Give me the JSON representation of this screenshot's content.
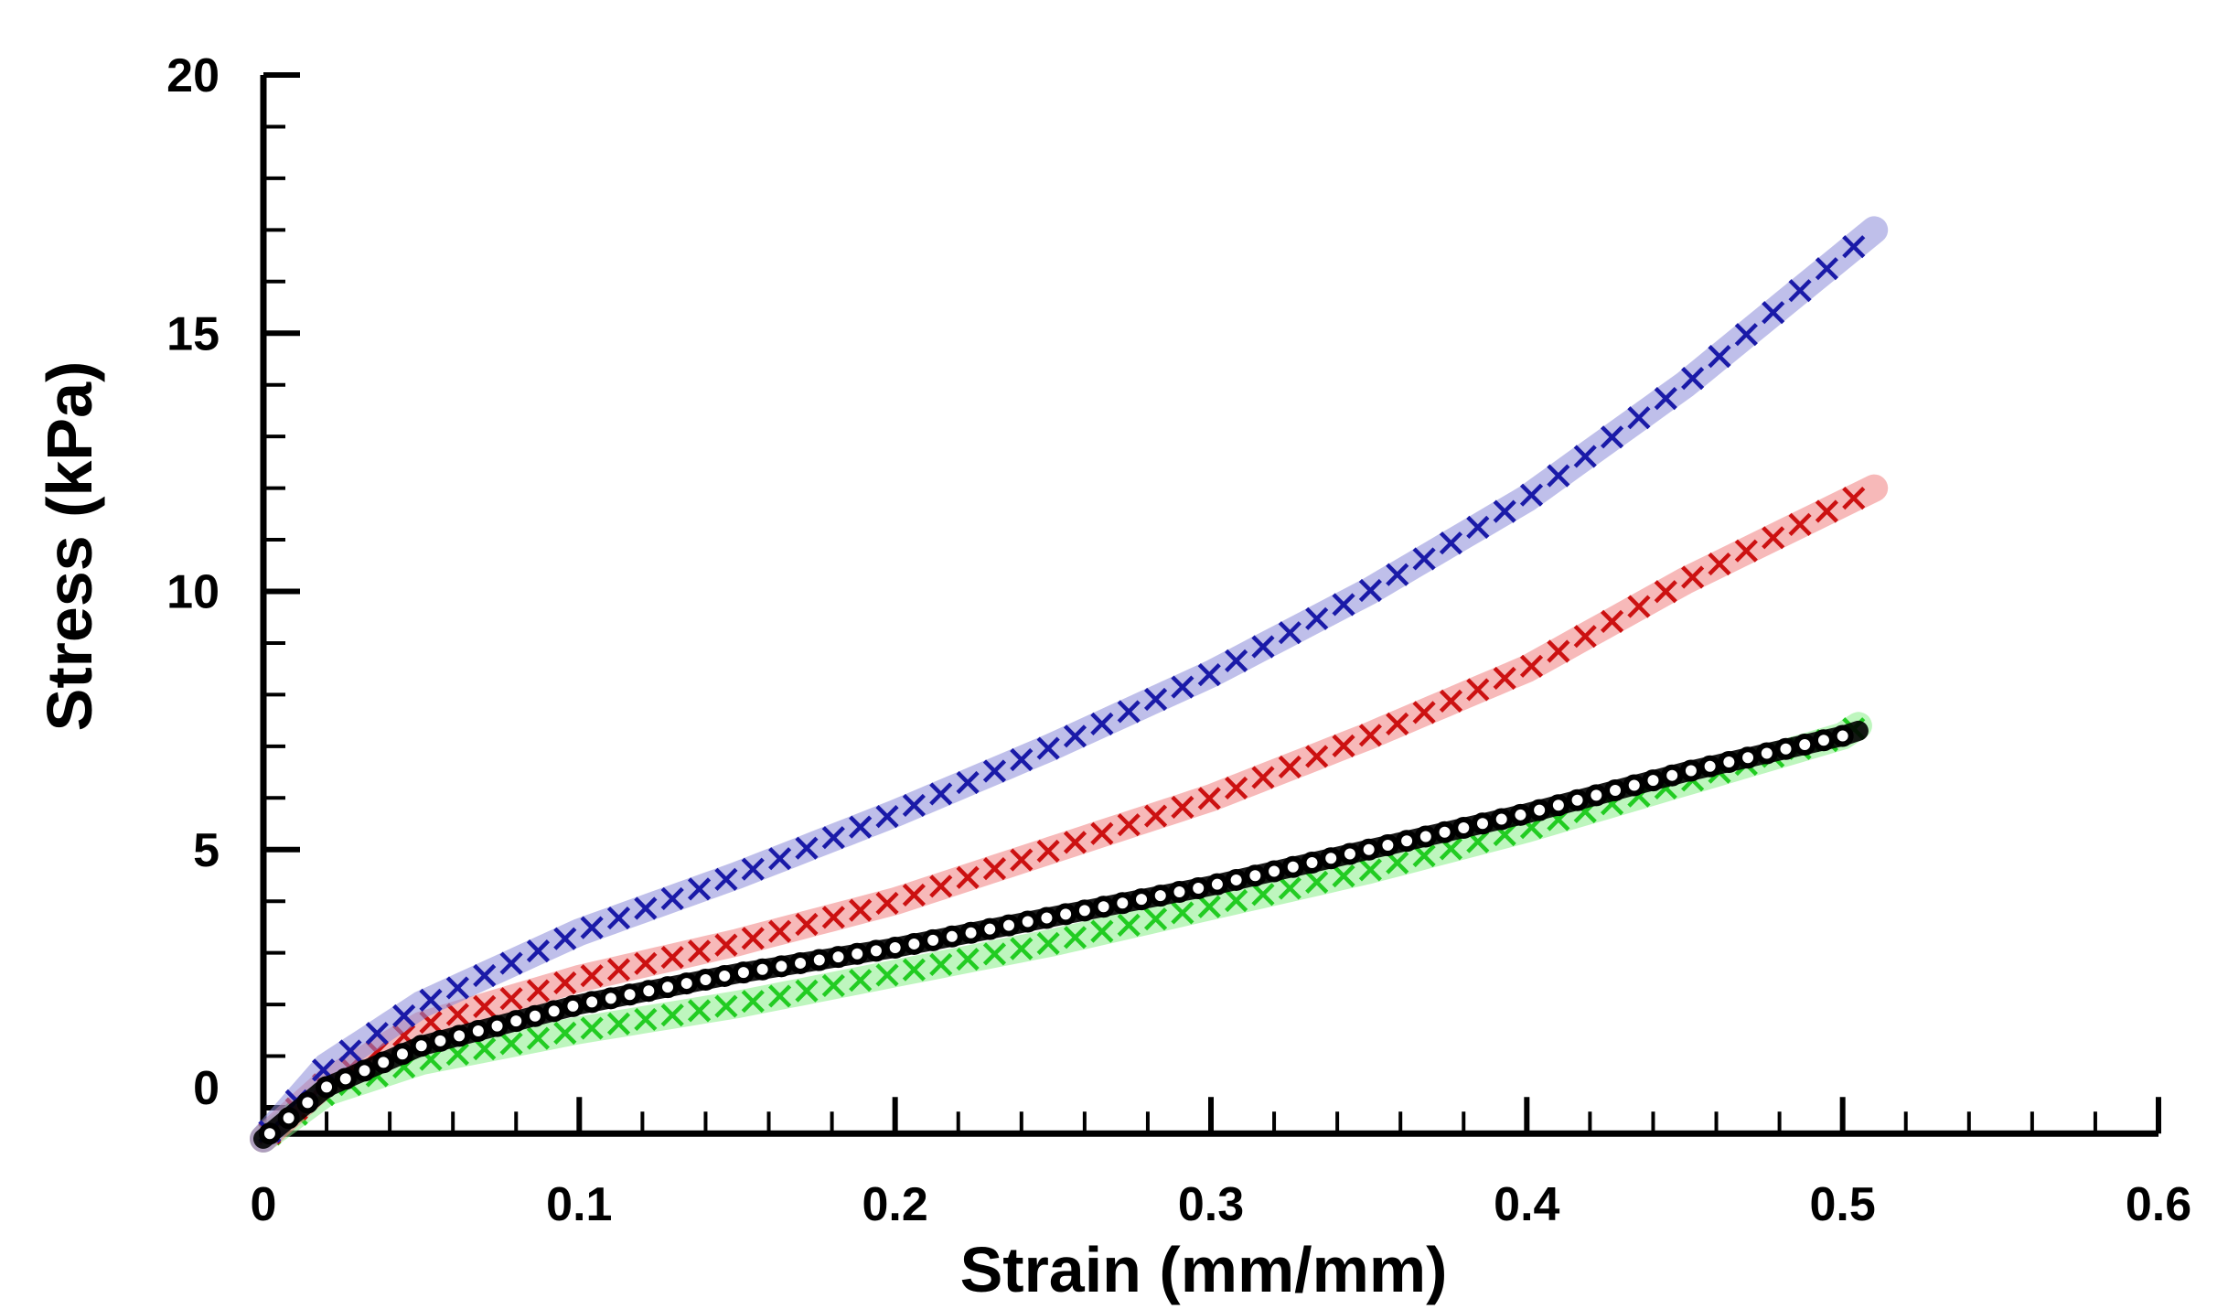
{
  "chart_data": {
    "type": "scatter",
    "title": "",
    "xlabel": "Strain (mm/mm)",
    "ylabel": "Stress (kPa)",
    "xlim": [
      0,
      0.6
    ],
    "ylim": [
      -0.5,
      20
    ],
    "xticks": [
      0,
      0.1,
      0.2,
      0.3,
      0.4,
      0.5,
      0.6
    ],
    "xtick_labels": [
      "0",
      "0.1",
      "0.2",
      "0.3",
      "0.4",
      "0.5",
      "0.6"
    ],
    "yticks": [
      0,
      5,
      10,
      15,
      20
    ],
    "ytick_labels": [
      "0",
      "5",
      "10",
      "15",
      "20"
    ],
    "grid": false,
    "series": [
      {
        "name": "blue",
        "color": "#1a1aa8",
        "band_color": "#8a8ad8",
        "marker": "x",
        "x": [
          0,
          0.02,
          0.05,
          0.1,
          0.15,
          0.2,
          0.25,
          0.3,
          0.35,
          0.4,
          0.45,
          0.5,
          0.51
        ],
        "y": [
          -0.6,
          0.8,
          2.0,
          3.4,
          4.5,
          5.7,
          7.0,
          8.4,
          10.0,
          11.8,
          14.0,
          16.5,
          17.0
        ]
      },
      {
        "name": "red",
        "color": "#cc1111",
        "band_color": "#f08080",
        "marker": "x",
        "x": [
          0,
          0.02,
          0.05,
          0.1,
          0.15,
          0.2,
          0.25,
          0.3,
          0.35,
          0.4,
          0.45,
          0.5,
          0.51
        ],
        "y": [
          -0.6,
          0.5,
          1.6,
          2.5,
          3.2,
          4.0,
          5.0,
          6.0,
          7.2,
          8.5,
          10.2,
          11.7,
          12.0
        ]
      },
      {
        "name": "black",
        "color": "#000000",
        "band_color": "#000000",
        "marker": "o",
        "x": [
          0,
          0.02,
          0.05,
          0.1,
          0.15,
          0.2,
          0.25,
          0.3,
          0.35,
          0.4,
          0.45,
          0.5,
          0.505
        ],
        "y": [
          -0.6,
          0.4,
          1.2,
          2.0,
          2.6,
          3.1,
          3.7,
          4.3,
          5.0,
          5.7,
          6.5,
          7.2,
          7.3
        ]
      },
      {
        "name": "green",
        "color": "#22cc22",
        "band_color": "#88ee88",
        "marker": "x",
        "x": [
          0,
          0.02,
          0.05,
          0.1,
          0.15,
          0.2,
          0.25,
          0.3,
          0.35,
          0.4,
          0.45,
          0.5,
          0.505
        ],
        "y": [
          -0.6,
          0.3,
          0.9,
          1.5,
          2.0,
          2.6,
          3.2,
          3.9,
          4.6,
          5.4,
          6.3,
          7.2,
          7.4
        ]
      }
    ]
  }
}
